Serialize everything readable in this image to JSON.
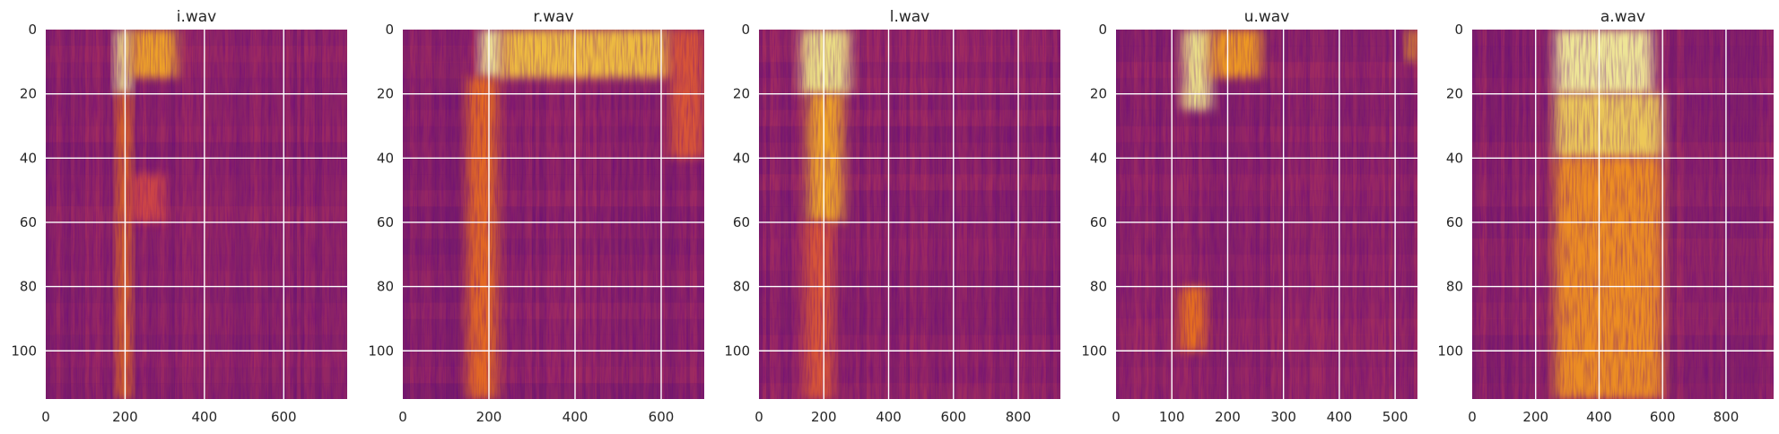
{
  "chart_data": [
    {
      "type": "heatmap",
      "title": "i.wav",
      "x_max": 760,
      "y_max": 115,
      "xlim": [
        0,
        760
      ],
      "ylim": [
        115,
        0
      ],
      "xticks": [
        0,
        200,
        400,
        600
      ],
      "yticks": [
        0,
        20,
        40,
        60,
        80,
        100
      ],
      "grid": true,
      "colormap": "inferno",
      "bright_regions": [
        {
          "x": [
            175,
            215
          ],
          "y": [
            0,
            20
          ],
          "level": 0.95
        },
        {
          "x": [
            215,
            330
          ],
          "y": [
            0,
            15
          ],
          "level": 0.72
        },
        {
          "x": [
            180,
            215
          ],
          "y": [
            20,
            115
          ],
          "level": 0.62
        },
        {
          "x": [
            215,
            300
          ],
          "y": [
            45,
            60
          ],
          "level": 0.5
        }
      ]
    },
    {
      "type": "heatmap",
      "title": "r.wav",
      "x_max": 700,
      "y_max": 115,
      "xlim": [
        0,
        700
      ],
      "ylim": [
        115,
        0
      ],
      "xticks": [
        0,
        200,
        400,
        600
      ],
      "yticks": [
        0,
        20,
        40,
        60,
        80,
        100
      ],
      "grid": true,
      "colormap": "inferno",
      "bright_regions": [
        {
          "x": [
            180,
            230
          ],
          "y": [
            0,
            15
          ],
          "level": 0.98
        },
        {
          "x": [
            230,
            620
          ],
          "y": [
            0,
            15
          ],
          "level": 0.78
        },
        {
          "x": [
            150,
            220
          ],
          "y": [
            15,
            115
          ],
          "level": 0.6
        },
        {
          "x": [
            620,
            700
          ],
          "y": [
            0,
            40
          ],
          "level": 0.55
        }
      ]
    },
    {
      "type": "heatmap",
      "title": "l.wav",
      "x_max": 930,
      "y_max": 115,
      "xlim": [
        0,
        930
      ],
      "ylim": [
        115,
        0
      ],
      "xticks": [
        0,
        200,
        400,
        600,
        800
      ],
      "yticks": [
        0,
        20,
        40,
        60,
        80,
        100
      ],
      "grid": true,
      "colormap": "inferno",
      "bright_regions": [
        {
          "x": [
            130,
            280
          ],
          "y": [
            0,
            20
          ],
          "level": 0.9
        },
        {
          "x": [
            150,
            260
          ],
          "y": [
            20,
            60
          ],
          "level": 0.72
        },
        {
          "x": [
            140,
            230
          ],
          "y": [
            60,
            115
          ],
          "level": 0.55
        }
      ]
    },
    {
      "type": "heatmap",
      "title": "u.wav",
      "x_max": 540,
      "y_max": 115,
      "xlim": [
        0,
        540
      ],
      "ylim": [
        115,
        0
      ],
      "xticks": [
        0,
        100,
        200,
        300,
        400,
        500
      ],
      "yticks": [
        0,
        20,
        40,
        60,
        80,
        100
      ],
      "grid": true,
      "colormap": "inferno",
      "bright_regions": [
        {
          "x": [
            120,
            170
          ],
          "y": [
            0,
            25
          ],
          "level": 0.92
        },
        {
          "x": [
            170,
            260
          ],
          "y": [
            0,
            15
          ],
          "level": 0.7
        },
        {
          "x": [
            115,
            160
          ],
          "y": [
            80,
            100
          ],
          "level": 0.62
        },
        {
          "x": [
            520,
            540
          ],
          "y": [
            0,
            10
          ],
          "level": 0.7
        }
      ]
    },
    {
      "type": "heatmap",
      "title": "a.wav",
      "x_max": 950,
      "y_max": 115,
      "xlim": [
        0,
        950
      ],
      "ylim": [
        115,
        0
      ],
      "xticks": [
        0,
        200,
        400,
        600,
        800
      ],
      "yticks": [
        0,
        20,
        40,
        60,
        80,
        100
      ],
      "grid": true,
      "colormap": "inferno",
      "bright_regions": [
        {
          "x": [
            260,
            570
          ],
          "y": [
            0,
            20
          ],
          "level": 0.97
        },
        {
          "x": [
            260,
            600
          ],
          "y": [
            20,
            40
          ],
          "level": 0.82
        },
        {
          "x": [
            260,
            600
          ],
          "y": [
            40,
            115
          ],
          "level": 0.68
        }
      ]
    }
  ]
}
